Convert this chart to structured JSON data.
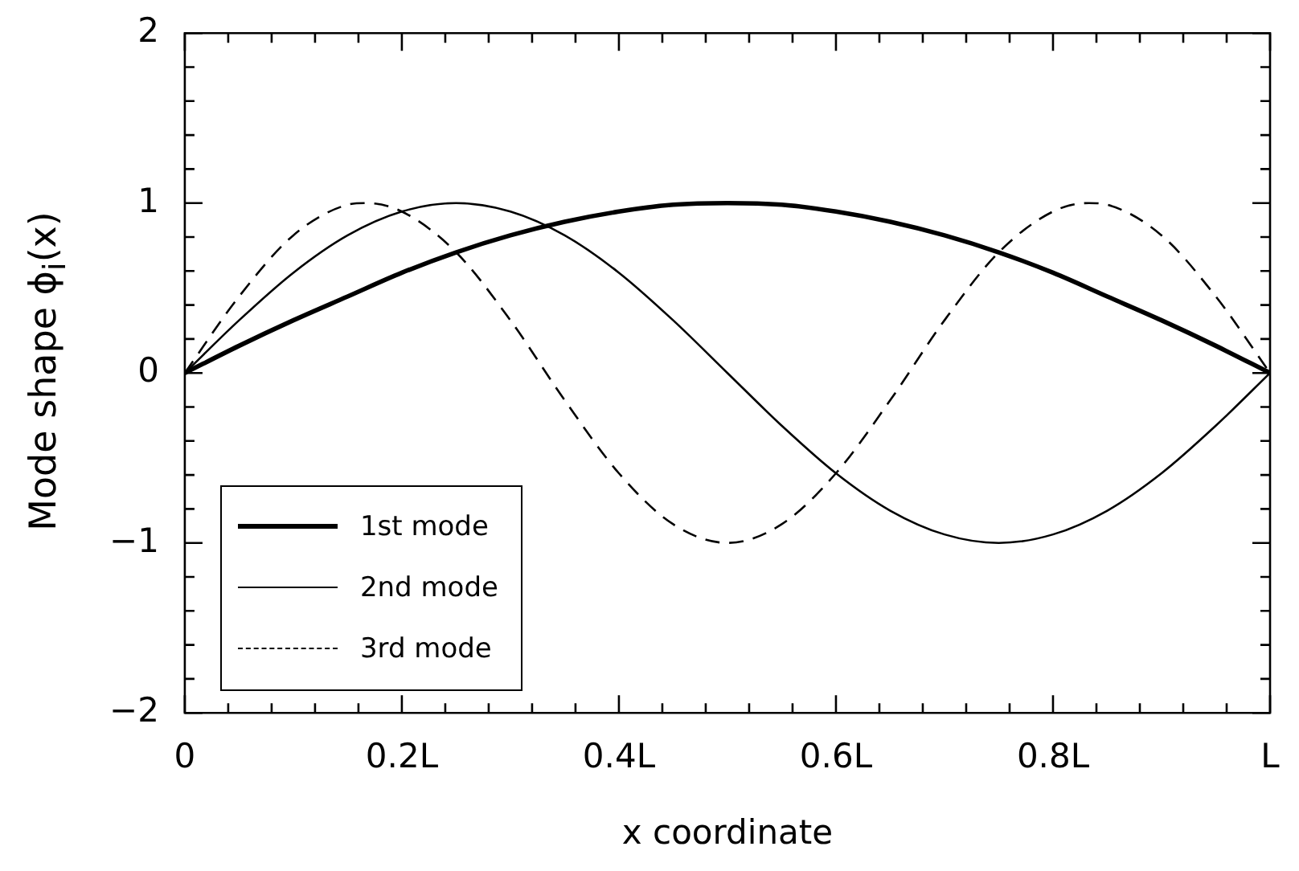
{
  "chart_data": {
    "type": "line",
    "xlabel": "x coordinate",
    "ylabel": "Mode shape ϕ$_{i}$(x)",
    "x": [
      0,
      0.05,
      0.1,
      0.15,
      0.2,
      0.25,
      0.3,
      0.35,
      0.4,
      0.45,
      0.5,
      0.55,
      0.6,
      0.65,
      0.7,
      0.75,
      0.8,
      0.85,
      0.9,
      0.95,
      1
    ],
    "series": [
      {
        "name": "1st mode",
        "color": "#000000",
        "line_style": "solid",
        "values": [
          0,
          0.16,
          0.31,
          0.45,
          0.59,
          0.71,
          0.81,
          0.89,
          0.95,
          0.99,
          1,
          0.99,
          0.95,
          0.89,
          0.81,
          0.71,
          0.59,
          0.45,
          0.31,
          0.16,
          0
        ]
      },
      {
        "name": "2nd mode",
        "color": "#000000",
        "line_style": "solid",
        "values": [
          0,
          0.31,
          0.59,
          0.81,
          0.95,
          1,
          0.95,
          0.81,
          0.59,
          0.31,
          0,
          -0.31,
          -0.59,
          -0.81,
          -0.95,
          -1,
          -0.95,
          -0.81,
          -0.59,
          -0.31,
          0
        ]
      },
      {
        "name": "3rd mode",
        "color": "#000000",
        "line_style": "dashed",
        "x": [
          0,
          0.05,
          0.1,
          0.15,
          0.167,
          0.2,
          0.25,
          0.3,
          0.35,
          0.4,
          0.45,
          0.5,
          0.55,
          0.6,
          0.65,
          0.7,
          0.75,
          0.8,
          0.833,
          0.85,
          0.9,
          0.95,
          1
        ],
        "values": [
          0,
          0.45,
          0.81,
          0.99,
          1,
          0.95,
          0.71,
          0.31,
          -0.16,
          -0.59,
          -0.89,
          -1,
          -0.89,
          -0.59,
          -0.16,
          0.31,
          0.71,
          0.95,
          1,
          0.99,
          0.81,
          0.45,
          0
        ]
      }
    ],
    "xlim": [
      0,
      1
    ],
    "xticks": [
      {
        "value": 0,
        "label": "0"
      },
      {
        "value": 0.04,
        "label": null
      },
      {
        "value": 0.08,
        "label": null
      },
      {
        "value": 0.12,
        "label": null
      },
      {
        "value": 0.16,
        "label": null
      },
      {
        "value": 0.2,
        "label": "0.2L"
      },
      {
        "value": 0.24,
        "label": null
      },
      {
        "value": 0.28,
        "label": null
      },
      {
        "value": 0.32,
        "label": null
      },
      {
        "value": 0.36,
        "label": null
      },
      {
        "value": 0.4,
        "label": "0.4L"
      },
      {
        "value": 0.44,
        "label": null
      },
      {
        "value": 0.48,
        "label": null
      },
      {
        "value": 0.52,
        "label": null
      },
      {
        "value": 0.56,
        "label": null
      },
      {
        "value": 0.6,
        "label": "0.6L"
      },
      {
        "value": 0.64,
        "label": null
      },
      {
        "value": 0.68,
        "label": null
      },
      {
        "value": 0.72,
        "label": null
      },
      {
        "value": 0.76,
        "label": null
      },
      {
        "value": 0.8,
        "label": "0.8L"
      },
      {
        "value": 0.84,
        "label": null
      },
      {
        "value": 0.88,
        "label": null
      },
      {
        "value": 0.92,
        "label": null
      },
      {
        "value": 0.96,
        "label": null
      },
      {
        "value": 1,
        "label": "L"
      }
    ],
    "ylim": [
      -2,
      2
    ],
    "yticks": [
      {
        "value": -2,
        "label": "−2"
      },
      {
        "value": -1.8,
        "label": null
      },
      {
        "value": -1.6,
        "label": null
      },
      {
        "value": -1.4,
        "label": null
      },
      {
        "value": -1.2,
        "label": null
      },
      {
        "value": -1,
        "label": "−1"
      },
      {
        "value": -0.8,
        "label": null
      },
      {
        "value": -0.6,
        "label": null
      },
      {
        "value": -0.4,
        "label": null
      },
      {
        "value": -0.2,
        "label": null
      },
      0,
      {
        "value": 0.2,
        "label": null
      },
      {
        "value": 0.4,
        "label": null
      },
      {
        "value": 0.6,
        "label": null
      },
      {
        "value": 0.8,
        "label": null
      },
      1,
      {
        "value": 1.2,
        "label": null
      },
      {
        "value": 1.4,
        "label": null
      },
      {
        "value": 1.6,
        "label": null
      },
      {
        "value": 1.8,
        "label": null
      },
      2
    ],
    "grid": false,
    "legend": "bottom left",
    "marker": "none"
  }
}
